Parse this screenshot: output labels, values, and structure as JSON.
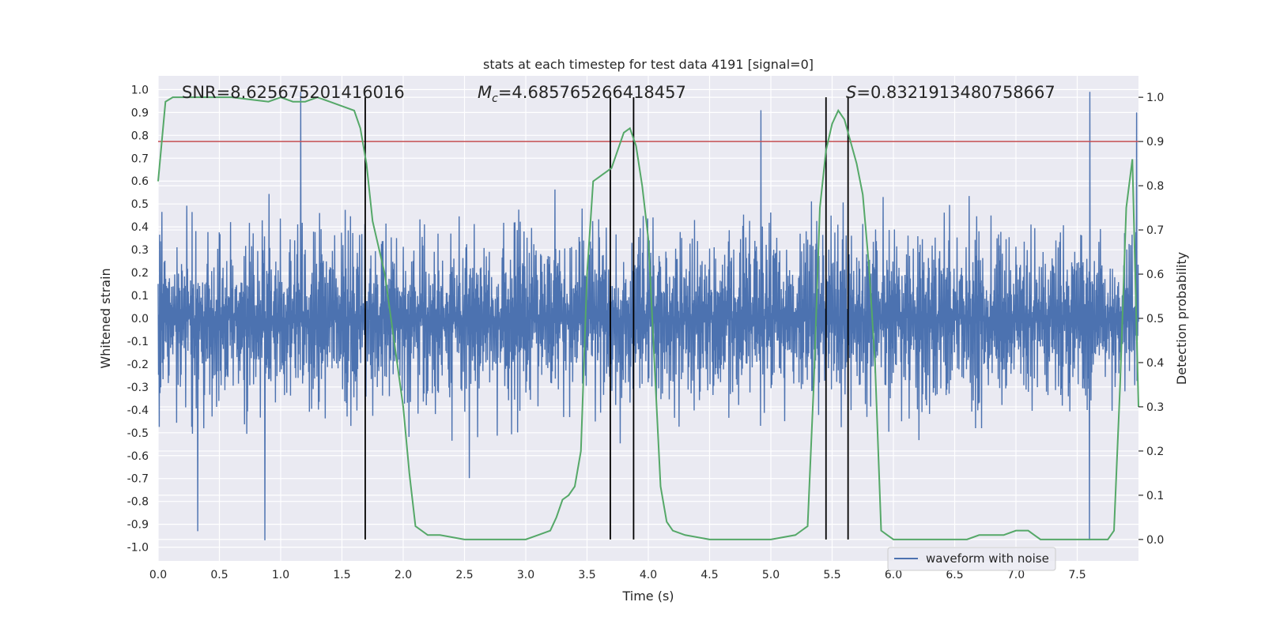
{
  "chart_data": {
    "type": "line",
    "title": "stats at each timestep for test data 4191 [signal=0]",
    "xlabel": "Time (s)",
    "ylabel": "Whitened strain",
    "y2label": "Detection probability",
    "xlim": [
      0.0,
      8.0
    ],
    "ylim": [
      -1.06,
      1.06
    ],
    "y2lim": [
      -0.0485,
      1.0485
    ],
    "x_ticks": [
      0.0,
      0.5,
      1.0,
      1.5,
      2.0,
      2.5,
      3.0,
      3.5,
      4.0,
      4.5,
      5.0,
      5.5,
      6.0,
      6.5,
      7.0,
      7.5
    ],
    "x_tick_labels": [
      "0.0",
      "0.5",
      "1.0",
      "1.5",
      "2.0",
      "2.5",
      "3.0",
      "3.5",
      "4.0",
      "4.5",
      "5.0",
      "5.5",
      "6.0",
      "6.5",
      "7.0",
      "7.5"
    ],
    "y_ticks": [
      1.0,
      0.9,
      0.8,
      0.7,
      0.6,
      0.5,
      0.4,
      0.3,
      0.2,
      0.1,
      0.0,
      -0.1,
      -0.2,
      -0.3,
      -0.4,
      -0.5,
      -0.6,
      -0.7,
      -0.8,
      -0.9,
      -1.0
    ],
    "y_tick_labels": [
      "1.0",
      "0.9",
      "0.8",
      "0.7",
      "0.6",
      "0.5",
      "0.4",
      "0.3",
      "0.2",
      "0.1",
      "0.0",
      "-0.1",
      "-0.2",
      "-0.3",
      "-0.4",
      "-0.5",
      "-0.6",
      "-0.7",
      "-0.8",
      "-0.9",
      "-1.0"
    ],
    "y2_ticks": [
      1.0,
      0.9,
      0.8,
      0.7,
      0.6,
      0.5,
      0.4,
      0.3,
      0.2,
      0.1,
      0.0
    ],
    "y2_tick_labels": [
      "1.0",
      "0.9",
      "0.8",
      "0.7",
      "0.6",
      "0.5",
      "0.4",
      "0.3",
      "0.2",
      "0.1",
      "0.0"
    ],
    "grid": true,
    "legend": {
      "position": "lower-right",
      "entries": [
        "waveform with noise"
      ]
    },
    "annotations": {
      "snr_text": "SNR=8.625675201416016",
      "mc_symbol": "M",
      "mc_subscript": "c",
      "mc_value": "=4.685765266418457",
      "s_symbol": "S",
      "s_value": "=0.8321913480758667"
    },
    "threshold_line": {
      "axis": "y2",
      "value": 0.9,
      "color": "#c44e52"
    },
    "event_lines_x": [
      1.69,
      3.69,
      3.88,
      5.45,
      5.63
    ],
    "waveform": {
      "name": "waveform with noise",
      "color": "#4c72b0",
      "duration": 8.0,
      "samples": 2600,
      "typical_amplitude": 0.32,
      "peak_amplitude": 1.0,
      "notable_peaks": [
        {
          "x": 1.16,
          "y": 0.99
        },
        {
          "x": 7.6,
          "y": 0.99
        },
        {
          "x": 4.92,
          "y": 0.91
        },
        {
          "x": 0.87,
          "y": -0.97
        },
        {
          "x": 0.32,
          "y": -0.93
        },
        {
          "x": 7.6,
          "y": -0.97
        },
        {
          "x": 7.98,
          "y": 0.9
        }
      ]
    },
    "probability_series": {
      "name": "detection probability",
      "color": "#55a868",
      "x": [
        0.0,
        0.06,
        0.12,
        0.3,
        0.6,
        0.9,
        1.0,
        1.1,
        1.2,
        1.3,
        1.4,
        1.5,
        1.6,
        1.65,
        1.7,
        1.75,
        1.85,
        1.9,
        1.95,
        2.0,
        2.05,
        2.1,
        2.2,
        2.3,
        2.5,
        3.0,
        3.1,
        3.2,
        3.25,
        3.3,
        3.35,
        3.4,
        3.45,
        3.5,
        3.55,
        3.6,
        3.65,
        3.7,
        3.75,
        3.8,
        3.85,
        3.9,
        3.95,
        4.0,
        4.05,
        4.1,
        4.15,
        4.2,
        4.3,
        4.5,
        5.0,
        5.2,
        5.3,
        5.35,
        5.4,
        5.45,
        5.5,
        5.55,
        5.6,
        5.65,
        5.7,
        5.75,
        5.8,
        5.85,
        5.9,
        5.95,
        6.0,
        6.3,
        6.6,
        6.7,
        6.8,
        6.9,
        7.0,
        7.1,
        7.15,
        7.2,
        7.3,
        7.6,
        7.65,
        7.7,
        7.75,
        7.8,
        7.85,
        7.9,
        7.95,
        8.0
      ],
      "y": [
        0.81,
        0.99,
        1.0,
        1.0,
        1.0,
        0.99,
        1.0,
        0.99,
        0.99,
        1.0,
        0.99,
        0.98,
        0.97,
        0.93,
        0.85,
        0.72,
        0.6,
        0.5,
        0.4,
        0.3,
        0.15,
        0.03,
        0.01,
        0.01,
        0.0,
        0.0,
        0.01,
        0.02,
        0.05,
        0.09,
        0.1,
        0.12,
        0.2,
        0.6,
        0.81,
        0.82,
        0.83,
        0.84,
        0.88,
        0.92,
        0.93,
        0.89,
        0.8,
        0.68,
        0.4,
        0.12,
        0.04,
        0.02,
        0.01,
        0.0,
        0.0,
        0.01,
        0.03,
        0.35,
        0.75,
        0.88,
        0.94,
        0.97,
        0.95,
        0.9,
        0.85,
        0.78,
        0.62,
        0.4,
        0.02,
        0.01,
        0.0,
        0.0,
        0.0,
        0.01,
        0.01,
        0.01,
        0.02,
        0.02,
        0.01,
        0.0,
        0.0,
        0.0,
        0.0,
        0.0,
        0.0,
        0.02,
        0.35,
        0.75,
        0.86,
        0.3
      ]
    }
  }
}
